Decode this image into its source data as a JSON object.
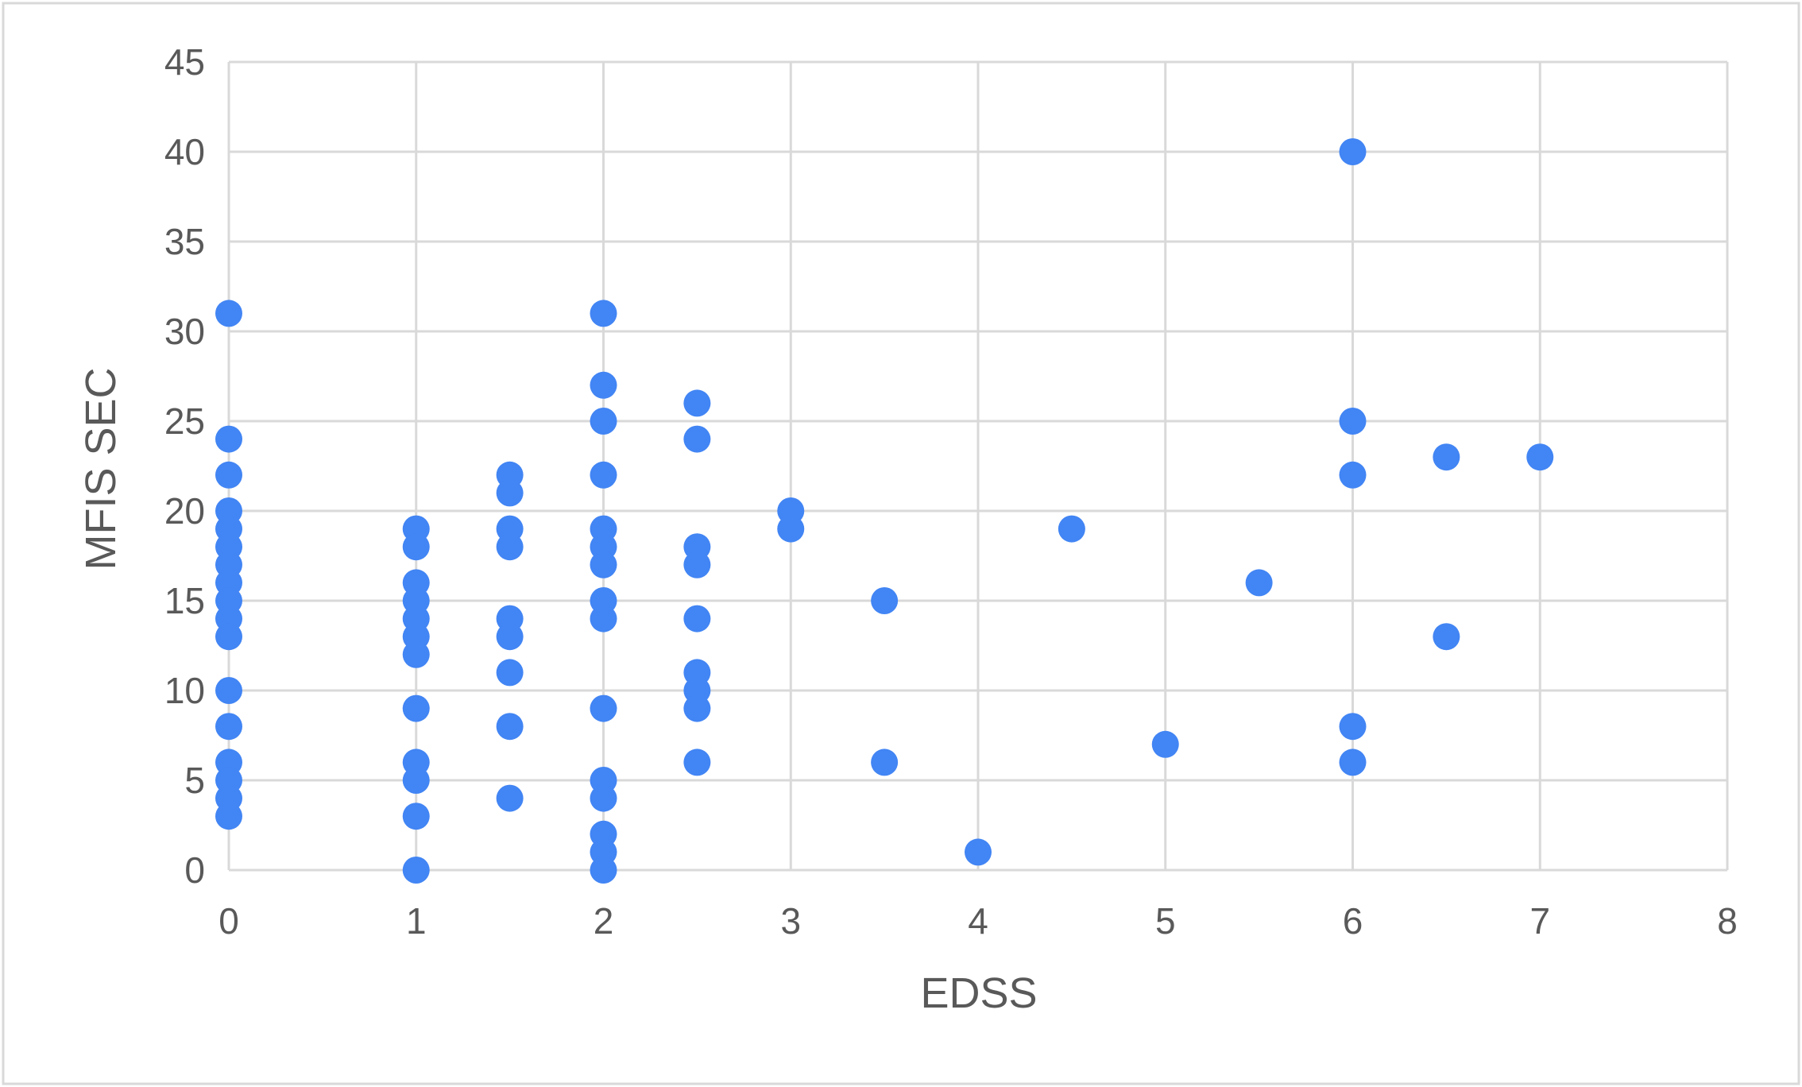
{
  "chart_data": {
    "type": "scatter",
    "title": "",
    "xlabel": "EDSS",
    "ylabel": "MFIS SEC",
    "xlim": [
      0,
      8
    ],
    "ylim": [
      0,
      45
    ],
    "x_ticks": [
      "0",
      "1",
      "2",
      "3",
      "4",
      "5",
      "6",
      "7",
      "8"
    ],
    "y_ticks": [
      "0",
      "5",
      "10",
      "15",
      "20",
      "25",
      "30",
      "35",
      "40",
      "45"
    ],
    "grid": true,
    "legend": "none",
    "colors": {
      "point": "#4285f4",
      "grid": "#d9d9d9",
      "text": "#595959",
      "border": "#d9d9d9"
    },
    "series": [
      {
        "points": [
          [
            0,
            31
          ],
          [
            0,
            24
          ],
          [
            0,
            22
          ],
          [
            0,
            20
          ],
          [
            0,
            19
          ],
          [
            0,
            18
          ],
          [
            0,
            17
          ],
          [
            0,
            16
          ],
          [
            0,
            15
          ],
          [
            0,
            14
          ],
          [
            0,
            13
          ],
          [
            0,
            10
          ],
          [
            0,
            8
          ],
          [
            0,
            6
          ],
          [
            0,
            5
          ],
          [
            0,
            4
          ],
          [
            0,
            3
          ],
          [
            1,
            19
          ],
          [
            1,
            18
          ],
          [
            1,
            16
          ],
          [
            1,
            15
          ],
          [
            1,
            14
          ],
          [
            1,
            13
          ],
          [
            1,
            12
          ],
          [
            1,
            9
          ],
          [
            1,
            6
          ],
          [
            1,
            5
          ],
          [
            1,
            3
          ],
          [
            1,
            0
          ],
          [
            1.5,
            22
          ],
          [
            1.5,
            21
          ],
          [
            1.5,
            19
          ],
          [
            1.5,
            18
          ],
          [
            1.5,
            14
          ],
          [
            1.5,
            13
          ],
          [
            1.5,
            11
          ],
          [
            1.5,
            8
          ],
          [
            1.5,
            4
          ],
          [
            2,
            31
          ],
          [
            2,
            27
          ],
          [
            2,
            25
          ],
          [
            2,
            22
          ],
          [
            2,
            19
          ],
          [
            2,
            18
          ],
          [
            2,
            17
          ],
          [
            2,
            15
          ],
          [
            2,
            14
          ],
          [
            2,
            9
          ],
          [
            2,
            5
          ],
          [
            2,
            4
          ],
          [
            2,
            2
          ],
          [
            2,
            1
          ],
          [
            2,
            0
          ],
          [
            2.5,
            26
          ],
          [
            2.5,
            24
          ],
          [
            2.5,
            18
          ],
          [
            2.5,
            17
          ],
          [
            2.5,
            14
          ],
          [
            2.5,
            11
          ],
          [
            2.5,
            10
          ],
          [
            2.5,
            9
          ],
          [
            2.5,
            6
          ],
          [
            3,
            20
          ],
          [
            3,
            19
          ],
          [
            3.5,
            15
          ],
          [
            3.5,
            6
          ],
          [
            4,
            1
          ],
          [
            4.5,
            19
          ],
          [
            5,
            7
          ],
          [
            5.5,
            16
          ],
          [
            6,
            40
          ],
          [
            6,
            25
          ],
          [
            6,
            22
          ],
          [
            6,
            8
          ],
          [
            6,
            6
          ],
          [
            6.5,
            23
          ],
          [
            6.5,
            13
          ],
          [
            7,
            23
          ]
        ]
      }
    ]
  }
}
